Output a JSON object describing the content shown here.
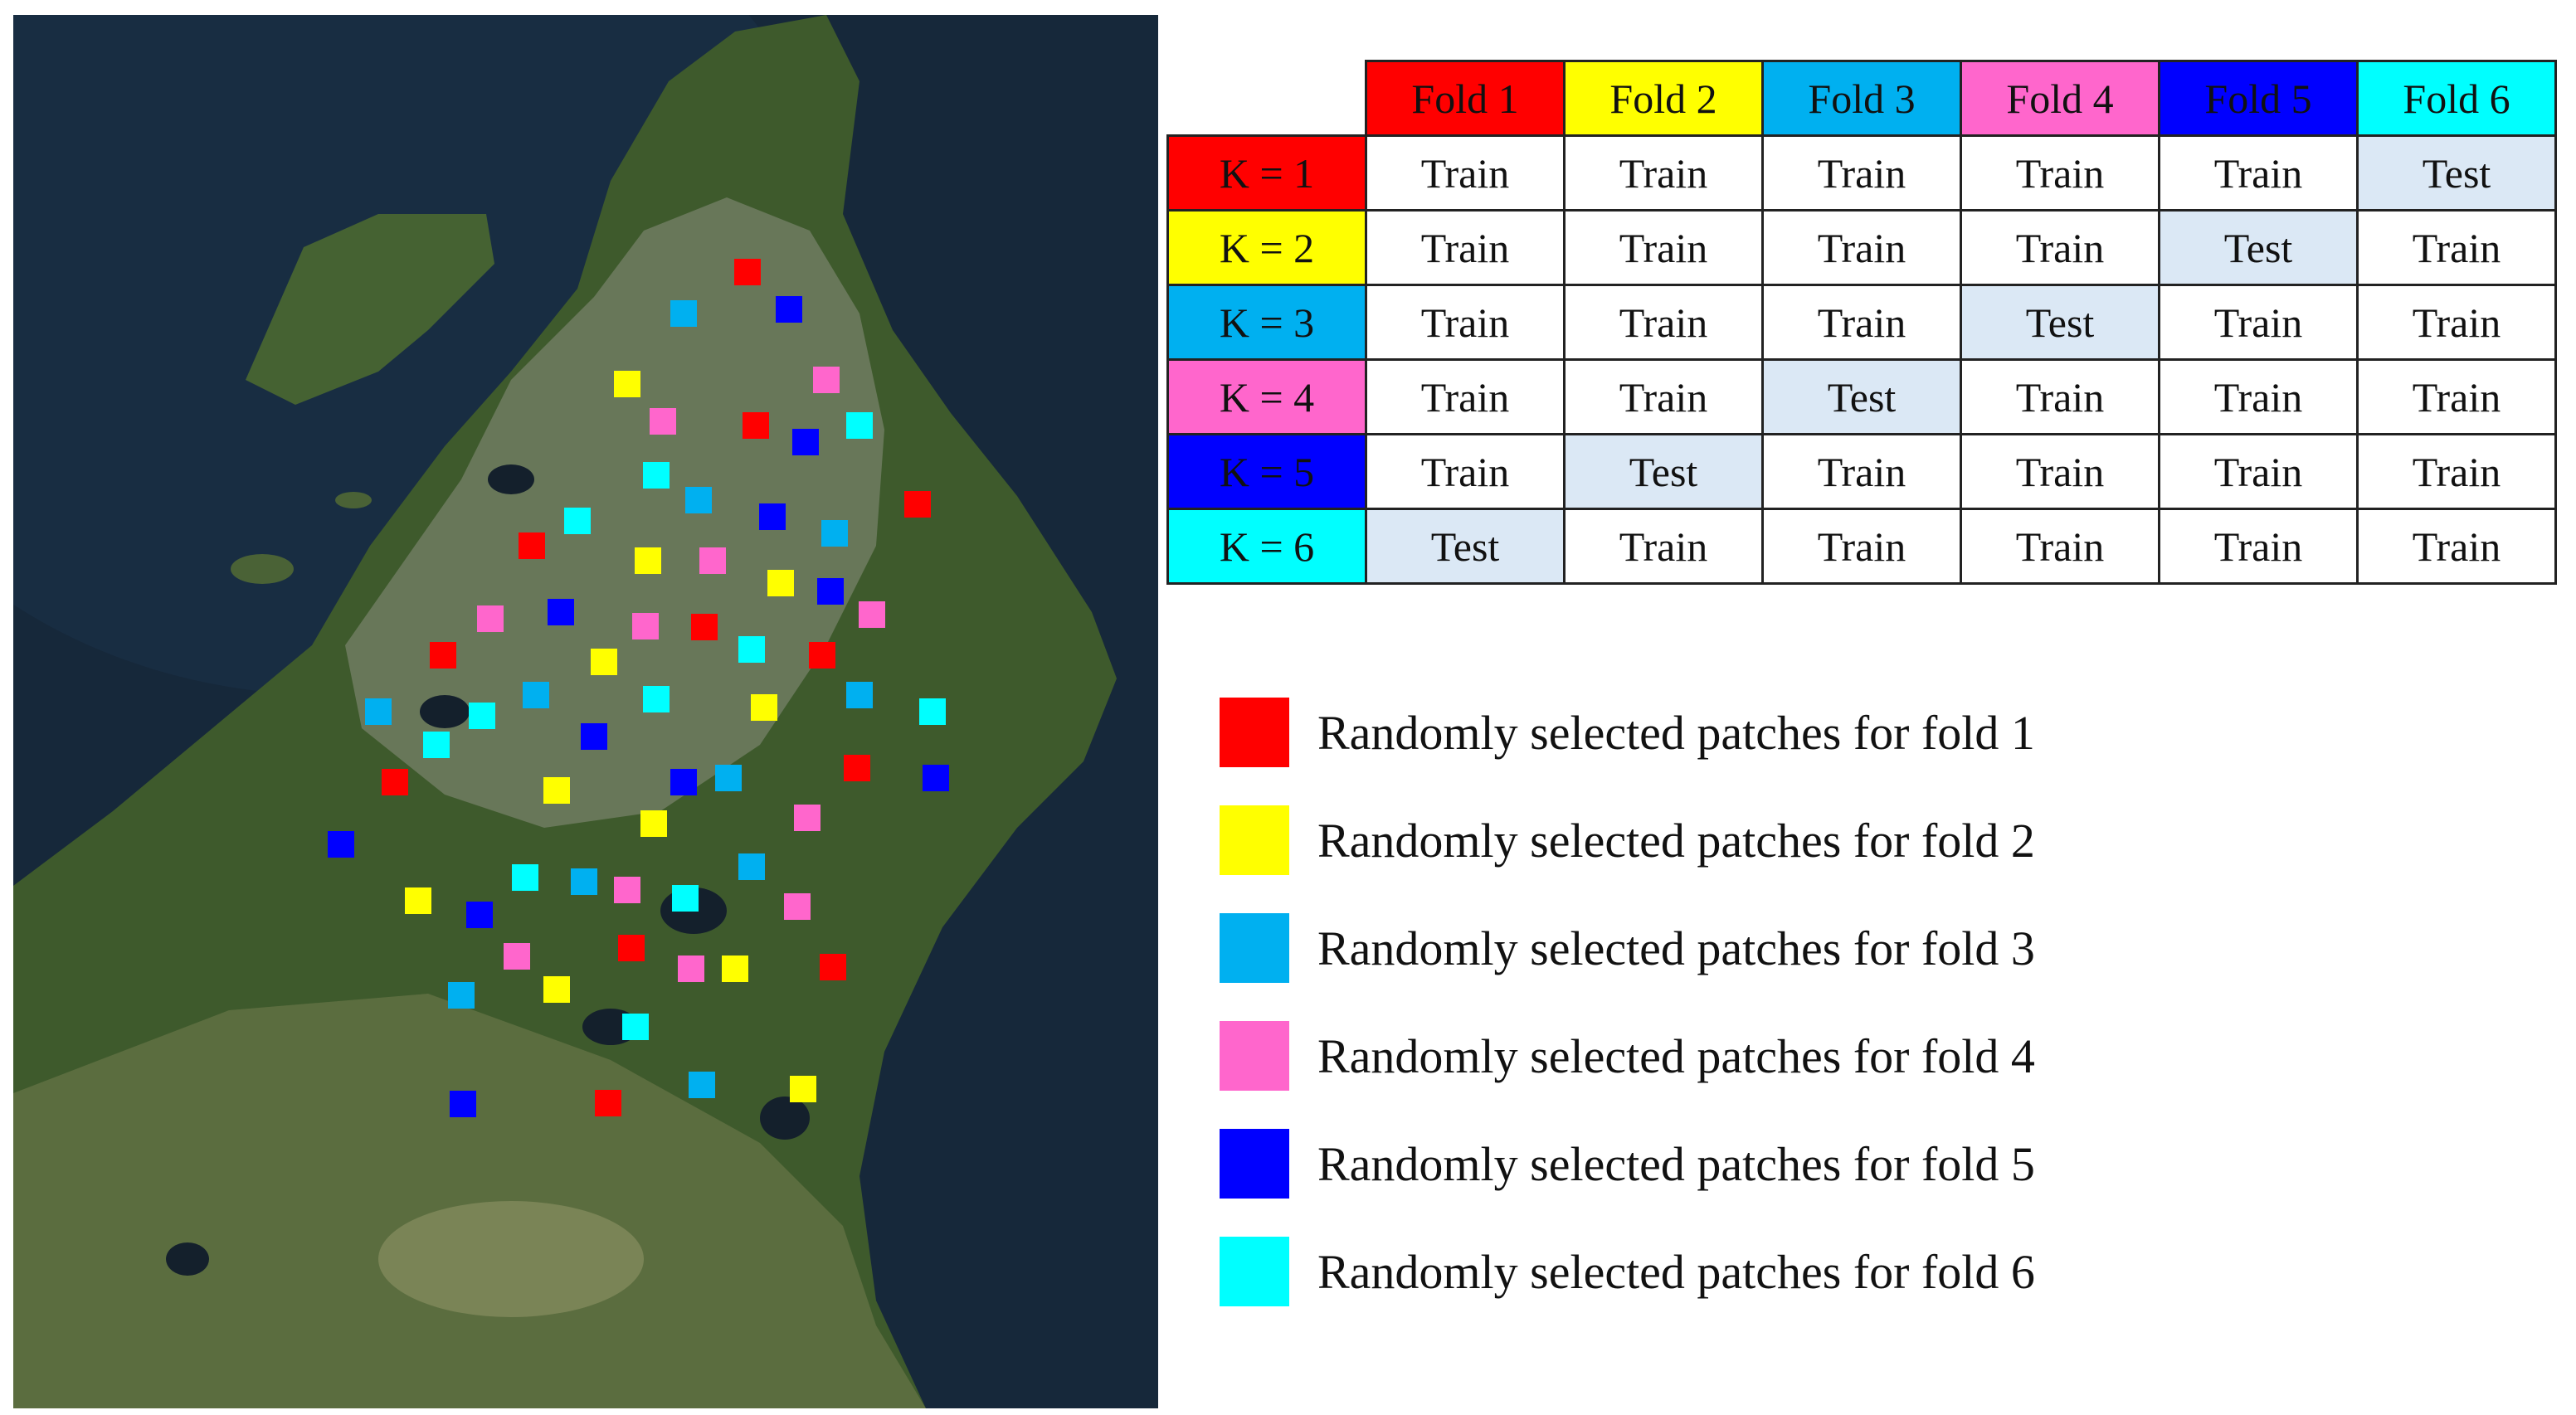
{
  "folds": [
    {
      "label": "Fold 1",
      "color": "#ff0000"
    },
    {
      "label": "Fold 2",
      "color": "#ffff00"
    },
    {
      "label": "Fold 3",
      "color": "#00b0f0"
    },
    {
      "label": "Fold 4",
      "color": "#ff66cc"
    },
    {
      "label": "Fold 5",
      "color": "#0000ff"
    },
    {
      "label": "Fold 6",
      "color": "#00ffff"
    }
  ],
  "test_cell_color": "#dbe8f5",
  "rows": [
    {
      "label": "K = 1",
      "cells": [
        "Train",
        "Train",
        "Train",
        "Train",
        "Train",
        "Test"
      ]
    },
    {
      "label": "K = 2",
      "cells": [
        "Train",
        "Train",
        "Train",
        "Train",
        "Test",
        "Train"
      ]
    },
    {
      "label": "K = 3",
      "cells": [
        "Train",
        "Train",
        "Train",
        "Test",
        "Train",
        "Train"
      ]
    },
    {
      "label": "K = 4",
      "cells": [
        "Train",
        "Train",
        "Test",
        "Train",
        "Train",
        "Train"
      ]
    },
    {
      "label": "K = 5",
      "cells": [
        "Train",
        "Test",
        "Train",
        "Train",
        "Train",
        "Train"
      ]
    },
    {
      "label": "K = 6",
      "cells": [
        "Test",
        "Train",
        "Train",
        "Train",
        "Train",
        "Train"
      ]
    }
  ],
  "legend": [
    {
      "label": "Randomly selected patches for fold 1",
      "fold": 1
    },
    {
      "label": "Randomly selected patches for fold 2",
      "fold": 2
    },
    {
      "label": "Randomly selected patches for fold 3",
      "fold": 3
    },
    {
      "label": "Randomly selected patches for fold 4",
      "fold": 4
    },
    {
      "label": "Randomly selected patches for fold 5",
      "fold": 5
    },
    {
      "label": "Randomly selected patches for fold 6",
      "fold": 6
    }
  ]
}
